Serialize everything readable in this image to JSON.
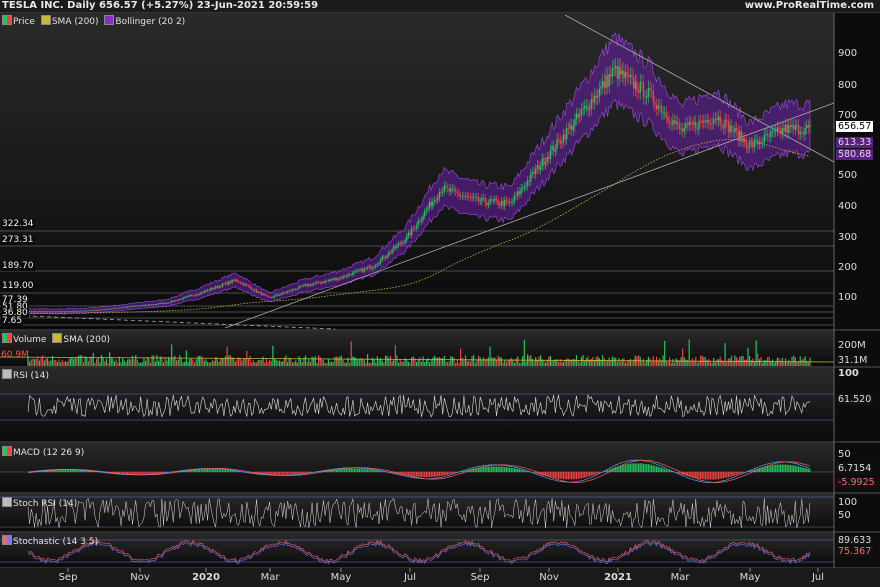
{
  "header": {
    "title": "TESLA INC. Daily 656.57 (+5.27%) 23-Jun-2021 20:59:59",
    "site": "www.ProRealTime.com"
  },
  "panels": {
    "price": {
      "legend": [
        "Price",
        "SMA (200)",
        "Bollinger (20 2)"
      ],
      "colors": {
        "price_up": "#22c55e",
        "price_down": "#ef4444",
        "sma": "#c9b83a",
        "bollinger": "#8b2fc9"
      },
      "yticks": [
        "900",
        "800",
        "700",
        "600",
        "500",
        "400",
        "300",
        "200",
        "100"
      ],
      "levels": [
        {
          "label": "322.34"
        },
        {
          "label": "273.31"
        },
        {
          "label": "189.70"
        },
        {
          "label": "119.00"
        },
        {
          "label": "77.39"
        },
        {
          "label": "51.80"
        },
        {
          "label": "36.80"
        },
        {
          "label": "7.65"
        }
      ],
      "tags": [
        {
          "label": "656.57",
          "bg": "#ffffff",
          "fg": "#000000"
        },
        {
          "label": "613.33",
          "bg": "#5b1f85",
          "fg": "#dddddd"
        },
        {
          "label": "580.68",
          "bg": "#5b1f85",
          "fg": "#dddddd"
        }
      ]
    },
    "volume": {
      "legend": [
        "Volume",
        "SMA (200)"
      ],
      "left_label": "60.9M",
      "ytick": "200M",
      "tag": "31.1M"
    },
    "rsi": {
      "legend": "RSI (14)",
      "ytick": "100",
      "tag": "61.520"
    },
    "macd": {
      "legend": "MACD (12 26 9)",
      "ytick": "50",
      "tags": [
        "6.7154",
        "-5.9925"
      ]
    },
    "stochrsi": {
      "legend": "Stoch RSI (14)",
      "yticks": [
        "100",
        "50"
      ]
    },
    "stochastic": {
      "legend": "Stochastic (14 3 5)",
      "tags": [
        "89.633",
        "75.367"
      ]
    }
  },
  "xaxis": {
    "labels": [
      {
        "text": "Sep",
        "bold": false
      },
      {
        "text": "Nov",
        "bold": false
      },
      {
        "text": "2020",
        "bold": true
      },
      {
        "text": "Mar",
        "bold": false
      },
      {
        "text": "May",
        "bold": false
      },
      {
        "text": "Jul",
        "bold": false
      },
      {
        "text": "Sep",
        "bold": false
      },
      {
        "text": "Nov",
        "bold": false
      },
      {
        "text": "2021",
        "bold": true
      },
      {
        "text": "Mar",
        "bold": false
      },
      {
        "text": "May",
        "bold": false
      },
      {
        "text": "Jul",
        "bold": false
      }
    ]
  },
  "chart_data": {
    "type": "line",
    "series": [
      {
        "values": [
          [
            "2019-08-01",
            47
          ],
          [
            "2019-09-01",
            46
          ],
          [
            "2019-10-01",
            52
          ],
          [
            "2019-11-01",
            66
          ],
          [
            "2019-12-01",
            80
          ],
          [
            "2020-01-01",
            118
          ],
          [
            "2020-02-01",
            160
          ],
          [
            "2020-03-01",
            100
          ],
          [
            "2020-04-01",
            140
          ],
          [
            "2020-05-01",
            165
          ],
          [
            "2020-06-01",
            205
          ],
          [
            "2020-07-01",
            300
          ],
          [
            "2020-08-01",
            460
          ],
          [
            "2020-09-01",
            420
          ],
          [
            "2020-10-01",
            410
          ],
          [
            "2020-11-01",
            560
          ],
          [
            "2020-12-01",
            700
          ],
          [
            "2021-01-01",
            850
          ],
          [
            "2021-02-01",
            770
          ],
          [
            "2021-03-01",
            650
          ],
          [
            "2021-04-01",
            700
          ],
          [
            "2021-05-01",
            600
          ],
          [
            "2021-06-01",
            656.57
          ]
        ]
      }
    ],
    "current_value": 656.57,
    "change_pct": 5.27
  }
}
